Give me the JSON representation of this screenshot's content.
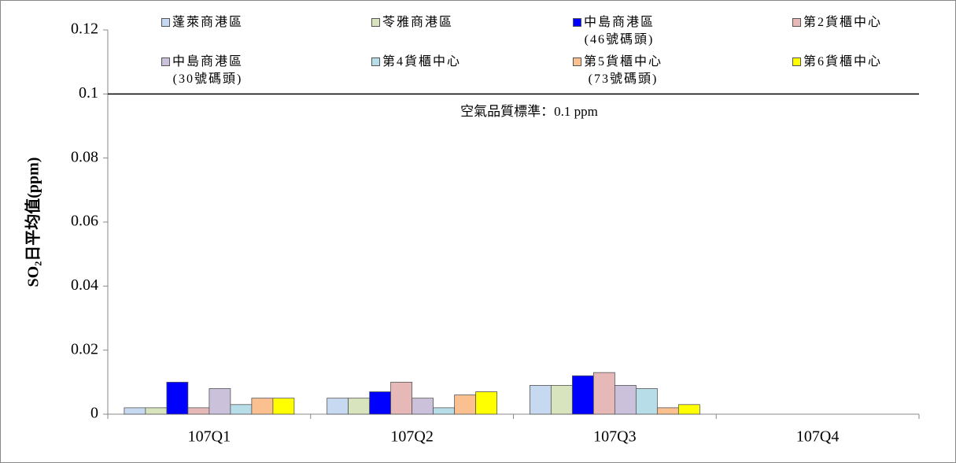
{
  "chart_data": {
    "type": "bar",
    "ylabel": "SO₂日平均值(ppm)",
    "categories": [
      "107Q1",
      "107Q2",
      "107Q3",
      "107Q4"
    ],
    "series": [
      {
        "name": "蓬萊商港區",
        "color": "#c6d9f1",
        "values": [
          0.002,
          0.005,
          0.009,
          null
        ]
      },
      {
        "name": "苓雅商港區",
        "color": "#d7e4bd",
        "values": [
          0.002,
          0.005,
          0.009,
          null
        ]
      },
      {
        "name": "中島商港區\n(46號碼頭)",
        "color": "#0000ff",
        "values": [
          0.01,
          0.007,
          0.012,
          null
        ]
      },
      {
        "name": "第2貨櫃中心",
        "color": "#e6b9b8",
        "values": [
          0.002,
          0.01,
          0.013,
          null
        ]
      },
      {
        "name": "中島商港區\n(30號碼頭)",
        "color": "#ccc1da",
        "values": [
          0.008,
          0.005,
          0.009,
          null
        ]
      },
      {
        "name": "第4貨櫃中心",
        "color": "#b7dee8",
        "values": [
          0.003,
          0.002,
          0.008,
          null
        ]
      },
      {
        "name": "第5貨櫃中心\n(73號碼頭)",
        "color": "#fac090",
        "values": [
          0.005,
          0.006,
          0.002,
          null
        ]
      },
      {
        "name": "第6貨櫃中心",
        "color": "#ffff00",
        "values": [
          0.005,
          0.007,
          0.003,
          null
        ]
      }
    ],
    "ylim": [
      0,
      0.12
    ],
    "yticks": [
      0,
      0.02,
      0.04,
      0.06,
      0.08,
      0.1,
      0.12
    ],
    "reference_line": {
      "value": 0.1,
      "label": "空氣品質標準：0.1 ppm"
    }
  }
}
